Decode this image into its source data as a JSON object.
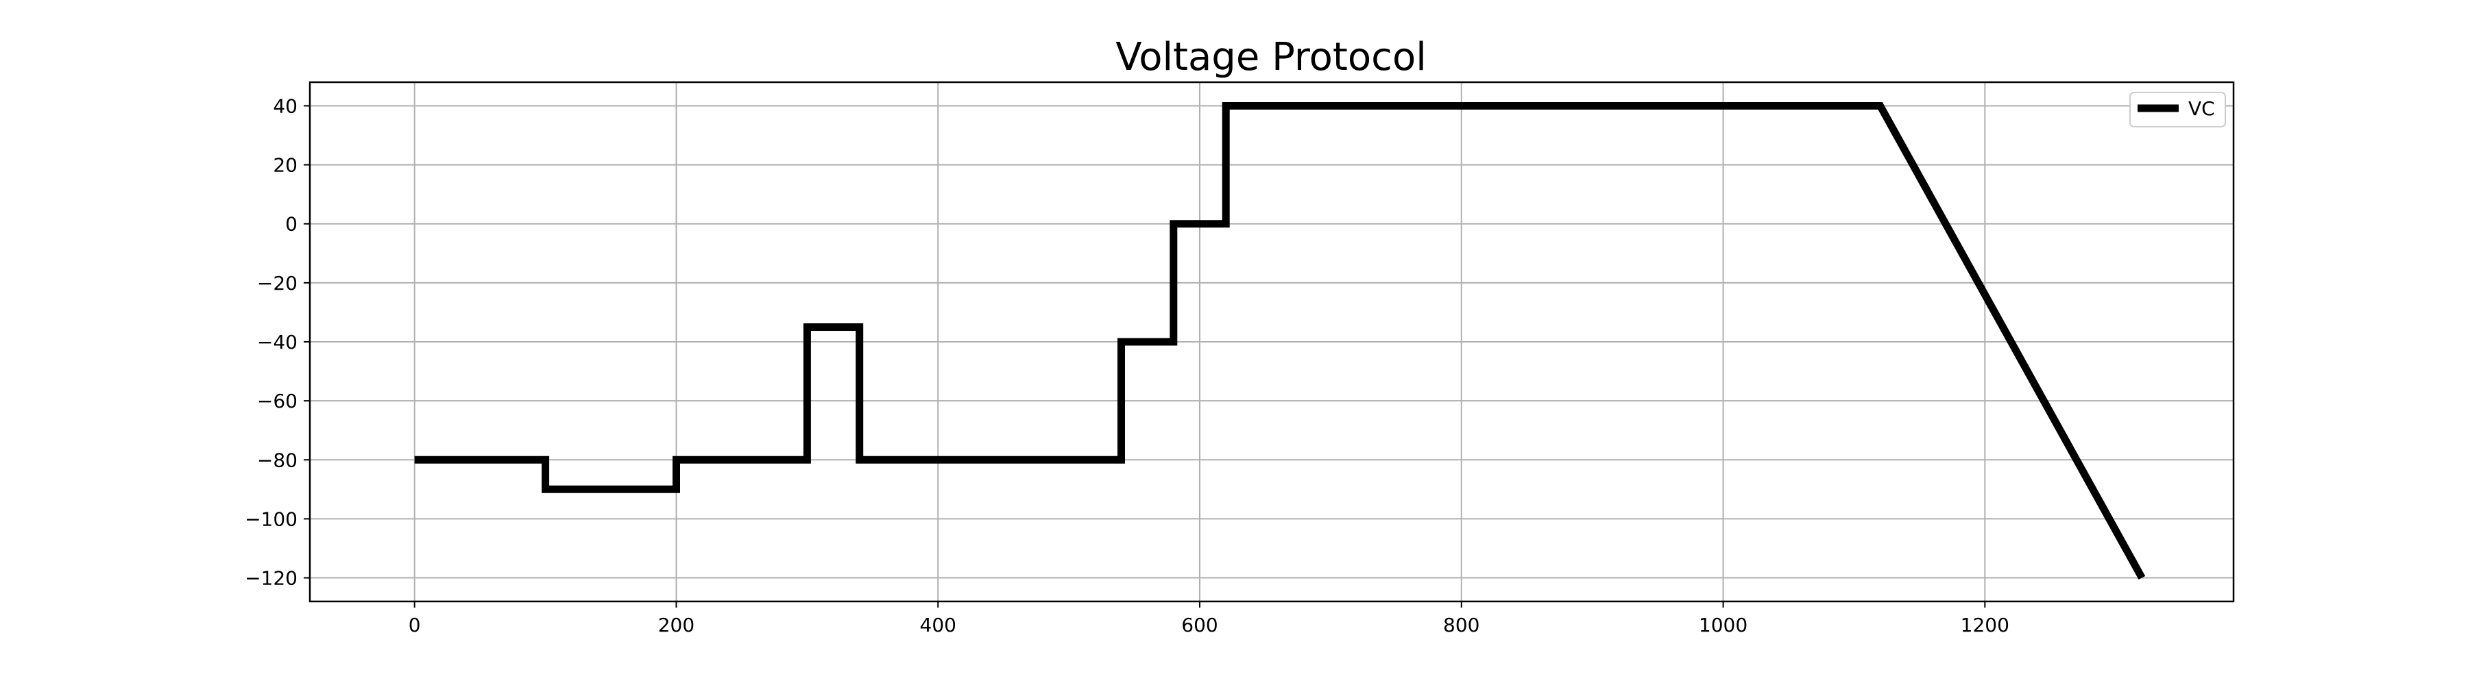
{
  "chart_data": {
    "type": "line",
    "title": "Voltage Protocol",
    "xlabel": "",
    "ylabel": "",
    "xlim": [
      -80,
      1390
    ],
    "ylim": [
      -128,
      48
    ],
    "x_ticks": [
      0,
      200,
      400,
      600,
      800,
      1000,
      1200
    ],
    "y_ticks": [
      40,
      20,
      0,
      -20,
      -40,
      -60,
      -80,
      -100,
      -120
    ],
    "x_tick_labels": [
      "0",
      "200",
      "400",
      "600",
      "800",
      "1000",
      "1200"
    ],
    "y_tick_labels": [
      "40",
      "20",
      "0",
      "−20",
      "−40",
      "−60",
      "−80",
      "−100",
      "−120"
    ],
    "grid": true,
    "legend_position": "top-right",
    "series": [
      {
        "name": "VC",
        "color": "#000000",
        "x": [
          0,
          100,
          100,
          200,
          200,
          300,
          300,
          340,
          340,
          540,
          540,
          580,
          580,
          620,
          620,
          1120,
          1320
        ],
        "y": [
          -80,
          -80,
          -90,
          -90,
          -80,
          -80,
          -35,
          -35,
          -80,
          -80,
          -40,
          -40,
          0,
          0,
          40,
          40,
          -120
        ]
      }
    ]
  }
}
